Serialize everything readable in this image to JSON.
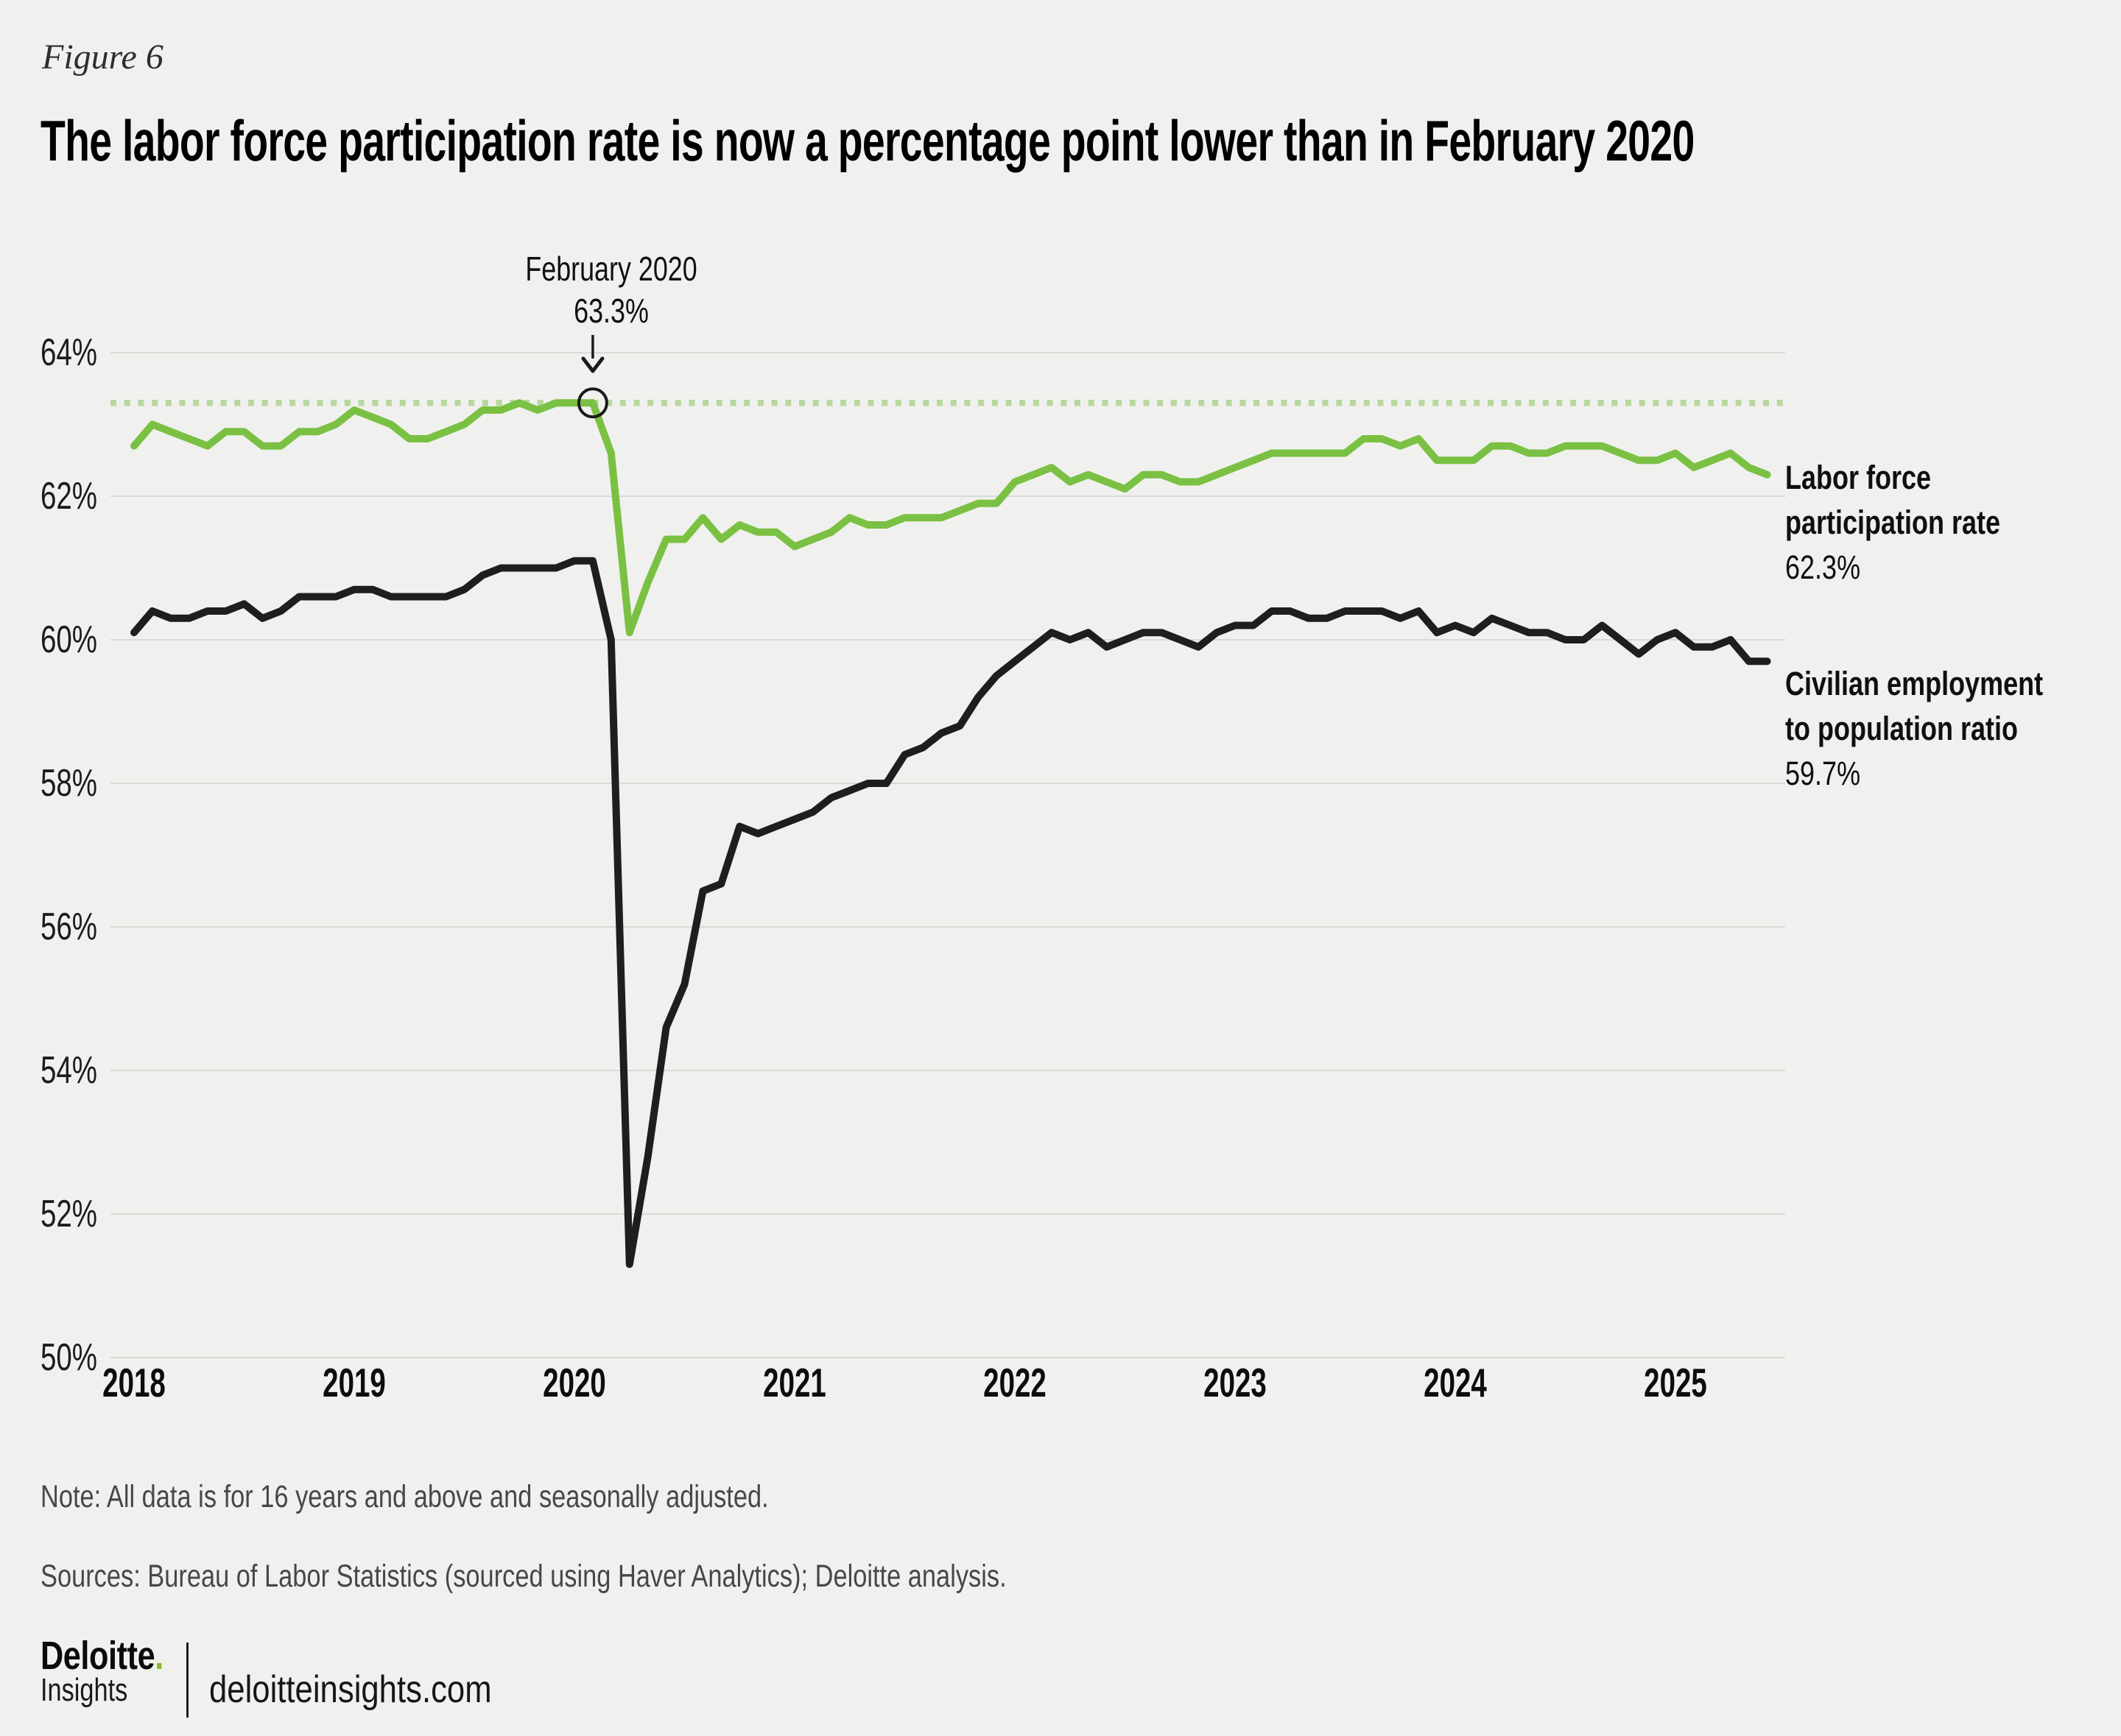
{
  "figure_label": "Figure 6",
  "title": "The labor force participation rate is now a percentage point lower than in February 2020",
  "annotation": {
    "line1": "February 2020",
    "line2": "63.3%"
  },
  "series_labels": {
    "lfpr": {
      "line1": "Labor force",
      "line2": "participation rate",
      "value": "62.3%"
    },
    "epop": {
      "line1": "Civilian employment",
      "line2": "to population ratio",
      "value": "59.7%"
    }
  },
  "note": "Note: All data is for 16 years and above and seasonally adjusted.",
  "sources": "Sources: Bureau of Labor Statistics (sourced using Haver Analytics); Deloitte analysis.",
  "footer": {
    "brand": "Deloitte",
    "brand_dot": ".",
    "brand_sub": "Insights",
    "site": "deloitteinsights.com"
  },
  "colors": {
    "background": "#F0F1EE",
    "grid": "#D8DAD5",
    "green_line": "#7AC143",
    "dotted_green": "#B7D79F",
    "black_line": "#1E1E1E",
    "marker_stroke": "#1A1A1A",
    "logo_green": "#86BC25"
  },
  "chart_data": {
    "type": "line",
    "title": "The labor force participation rate is now a percentage point lower than in February 2020",
    "x_unit": "month",
    "x_range": [
      "2018-01",
      "2025-06"
    ],
    "x_tick_labels": [
      "2018",
      "2019",
      "2020",
      "2021",
      "2022",
      "2023",
      "2024",
      "2025"
    ],
    "y_ticks": [
      64,
      62,
      60,
      58,
      56,
      54,
      52,
      50
    ],
    "y_tick_labels": [
      "64%",
      "62%",
      "60%",
      "58%",
      "56%",
      "54%",
      "52%",
      "50%"
    ],
    "ylim": [
      49.5,
      64.6
    ],
    "grid": "horizontal",
    "legend_position": "right-of-line-ends",
    "reference_line": {
      "value": 63.3,
      "style": "dotted",
      "color": "#B7D79F"
    },
    "marker": {
      "month": "2020-02",
      "month_index": 25,
      "value": 63.3,
      "label": "February 2020",
      "value_label": "63.3%"
    },
    "series": [
      {
        "name": "Civilian employment to population ratio",
        "color": "#1E1E1E",
        "end_value": 59.7,
        "values": [
          60.1,
          60.4,
          60.3,
          60.3,
          60.4,
          60.4,
          60.5,
          60.3,
          60.4,
          60.6,
          60.6,
          60.6,
          60.7,
          60.7,
          60.6,
          60.6,
          60.6,
          60.6,
          60.7,
          60.9,
          61.0,
          61.0,
          61.0,
          61.0,
          61.1,
          61.1,
          60.0,
          51.3,
          52.8,
          54.6,
          55.2,
          56.5,
          56.6,
          57.4,
          57.3,
          57.4,
          57.5,
          57.6,
          57.8,
          57.9,
          58.0,
          58.0,
          58.4,
          58.5,
          58.7,
          58.8,
          59.2,
          59.5,
          59.7,
          59.9,
          60.1,
          60.0,
          60.1,
          59.9,
          60.0,
          60.1,
          60.1,
          60.0,
          59.9,
          60.1,
          60.2,
          60.2,
          60.4,
          60.4,
          60.3,
          60.3,
          60.4,
          60.4,
          60.4,
          60.3,
          60.4,
          60.1,
          60.2,
          60.1,
          60.3,
          60.2,
          60.1,
          60.1,
          60.0,
          60.0,
          60.2,
          60.0,
          59.8,
          60.0,
          60.1,
          59.9,
          59.9,
          60.0,
          59.7,
          59.7
        ]
      },
      {
        "name": "Labor force participation rate",
        "color": "#7AC143",
        "end_value": 62.3,
        "values": [
          62.7,
          63.0,
          62.9,
          62.8,
          62.7,
          62.9,
          62.9,
          62.7,
          62.7,
          62.9,
          62.9,
          63.0,
          63.2,
          63.1,
          63.0,
          62.8,
          62.8,
          62.9,
          63.0,
          63.2,
          63.2,
          63.3,
          63.2,
          63.3,
          63.3,
          63.3,
          62.6,
          60.1,
          60.8,
          61.4,
          61.4,
          61.7,
          61.4,
          61.6,
          61.5,
          61.5,
          61.3,
          61.4,
          61.5,
          61.7,
          61.6,
          61.6,
          61.7,
          61.7,
          61.7,
          61.8,
          61.9,
          61.9,
          62.2,
          62.3,
          62.4,
          62.2,
          62.3,
          62.2,
          62.1,
          62.3,
          62.3,
          62.2,
          62.2,
          62.3,
          62.4,
          62.5,
          62.6,
          62.6,
          62.6,
          62.6,
          62.6,
          62.8,
          62.8,
          62.7,
          62.8,
          62.5,
          62.5,
          62.5,
          62.7,
          62.7,
          62.6,
          62.6,
          62.7,
          62.7,
          62.7,
          62.6,
          62.5,
          62.5,
          62.6,
          62.4,
          62.5,
          62.6,
          62.4,
          62.3
        ]
      }
    ]
  }
}
